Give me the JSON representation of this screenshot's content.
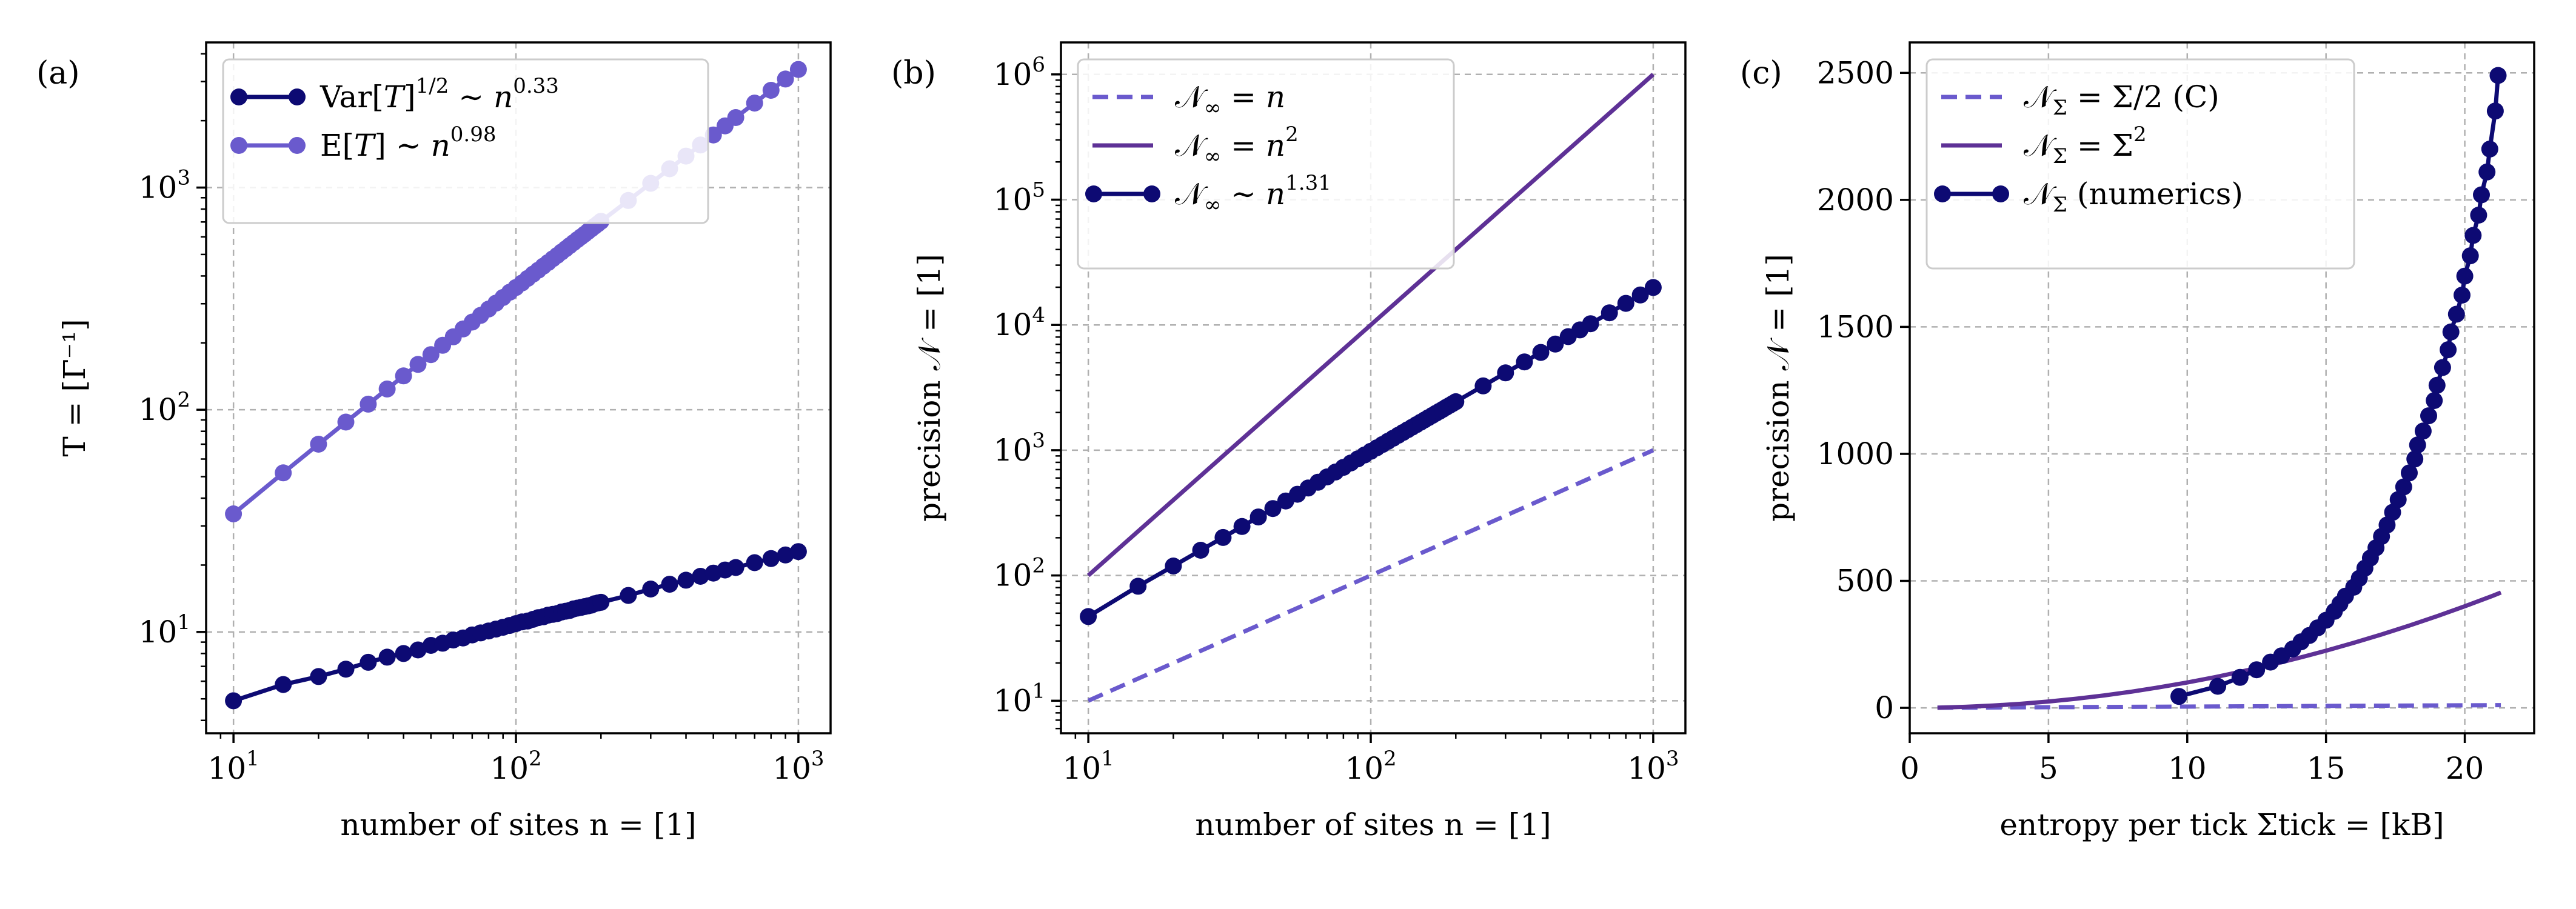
{
  "figure": {
    "colors": {
      "darknavy": "#0d0a73",
      "slate": "#6a5acd",
      "purple": "#5e3196"
    }
  },
  "chart_data": [
    {
      "panel": "(a)",
      "type": "line",
      "xlabel": "number of sites n = [1]",
      "ylabel": "T = [Γ⁻¹]",
      "xscale": "log",
      "yscale": "log",
      "xlim": [
        8,
        1300
      ],
      "ylim": [
        3.5,
        4500
      ],
      "xticks": [
        10,
        100,
        1000
      ],
      "xtick_labels": [
        [
          "10",
          "1"
        ],
        [
          "10",
          "2"
        ],
        [
          "10",
          "3"
        ]
      ],
      "yticks": [
        10,
        100,
        1000
      ],
      "ytick_labels": [
        [
          "10",
          "1"
        ],
        [
          "10",
          "2"
        ],
        [
          "10",
          "3"
        ]
      ],
      "grid": true,
      "legend_position": "top-left",
      "series": [
        {
          "name": "Var[T]^1/2 ∼ n^0.33",
          "legend_parts": [
            "Var[",
            "T",
            "]",
            "1/2",
            " ∼ ",
            "n",
            "0.33"
          ],
          "color": "#0d0a73",
          "style": "solid-markers",
          "x": [
            10,
            15,
            20,
            25,
            30,
            35,
            40,
            45,
            50,
            55,
            60,
            65,
            70,
            75,
            80,
            85,
            90,
            95,
            100,
            105,
            110,
            115,
            120,
            125,
            130,
            135,
            140,
            145,
            150,
            155,
            160,
            165,
            170,
            175,
            180,
            185,
            190,
            195,
            200,
            250,
            300,
            350,
            400,
            450,
            500,
            550,
            600,
            700,
            800,
            900,
            1000
          ],
          "y": [
            4.9,
            5.8,
            6.3,
            6.8,
            7.3,
            7.7,
            8.0,
            8.3,
            8.7,
            8.9,
            9.2,
            9.4,
            9.7,
            9.9,
            10.1,
            10.3,
            10.5,
            10.7,
            10.9,
            11.1,
            11.2,
            11.4,
            11.6,
            11.7,
            11.9,
            12.0,
            12.1,
            12.3,
            12.4,
            12.5,
            12.7,
            12.8,
            12.9,
            13.0,
            13.1,
            13.2,
            13.4,
            13.5,
            13.6,
            14.6,
            15.6,
            16.4,
            17.1,
            17.8,
            18.4,
            19.0,
            19.5,
            20.5,
            21.4,
            22.2,
            23.0
          ]
        },
        {
          "name": "E[T] ∼ n^0.98",
          "legend_parts": [
            "E[",
            "T",
            "]",
            "",
            " ∼ ",
            "n",
            "0.98"
          ],
          "color": "#6a5acd",
          "style": "solid-markers",
          "x": [
            10,
            15,
            20,
            25,
            30,
            35,
            40,
            45,
            50,
            55,
            60,
            65,
            70,
            75,
            80,
            85,
            90,
            95,
            100,
            105,
            110,
            115,
            120,
            125,
            130,
            135,
            140,
            145,
            150,
            155,
            160,
            165,
            170,
            175,
            180,
            185,
            190,
            195,
            200,
            250,
            300,
            350,
            400,
            450,
            500,
            550,
            600,
            700,
            800,
            900,
            1000
          ],
          "y": [
            34,
            52,
            70,
            88,
            106,
            124,
            142,
            160,
            177,
            195,
            213,
            231,
            248,
            266,
            284,
            302,
            320,
            338,
            355,
            372,
            390,
            408,
            425,
            443,
            460,
            478,
            495,
            513,
            530,
            548,
            565,
            583,
            600,
            617,
            635,
            652,
            670,
            687,
            705,
            875,
            1045,
            1215,
            1385,
            1555,
            1725,
            1895,
            2065,
            2400,
            2740,
            3080,
            3400
          ]
        }
      ]
    },
    {
      "panel": "(b)",
      "type": "line",
      "xlabel": "number of sites n = [1]",
      "ylabel": "precision 𝒩 = [1]",
      "xscale": "log",
      "yscale": "log",
      "xlim": [
        8,
        1300
      ],
      "ylim": [
        5.5,
        1800000
      ],
      "xticks": [
        10,
        100,
        1000
      ],
      "xtick_labels": [
        [
          "10",
          "1"
        ],
        [
          "10",
          "2"
        ],
        [
          "10",
          "3"
        ]
      ],
      "yticks": [
        10,
        100,
        1000,
        10000,
        100000,
        1000000
      ],
      "ytick_labels": [
        [
          "10",
          "1"
        ],
        [
          "10",
          "2"
        ],
        [
          "10",
          "3"
        ],
        [
          "10",
          "4"
        ],
        [
          "10",
          "5"
        ],
        [
          "10",
          "6"
        ]
      ],
      "grid": true,
      "legend_position": "top-left",
      "series": [
        {
          "name": "𝒩∞ = n",
          "legend_parts": [
            "𝒩",
            "∞",
            " = ",
            "n",
            ""
          ],
          "color": "#6a5acd",
          "style": "dashed",
          "x": [
            10,
            1000
          ],
          "y": [
            10,
            1000
          ]
        },
        {
          "name": "𝒩∞ = n^2",
          "legend_parts": [
            "𝒩",
            "∞",
            " = ",
            "n",
            "2"
          ],
          "color": "#5e3196",
          "style": "solid",
          "x": [
            10,
            1000
          ],
          "y": [
            100,
            1000000
          ]
        },
        {
          "name": "𝒩∞ ∼ n^1.31",
          "legend_parts": [
            "𝒩",
            "∞",
            " ∼ ",
            "n",
            "1.31"
          ],
          "color": "#0d0a73",
          "style": "solid-markers",
          "x": [
            10,
            15,
            20,
            25,
            30,
            35,
            40,
            45,
            50,
            55,
            60,
            65,
            70,
            75,
            80,
            85,
            90,
            95,
            100,
            105,
            110,
            115,
            120,
            125,
            130,
            135,
            140,
            145,
            150,
            155,
            160,
            165,
            170,
            175,
            180,
            185,
            190,
            195,
            200,
            250,
            300,
            350,
            400,
            450,
            500,
            550,
            600,
            700,
            800,
            900,
            1000
          ],
          "y": [
            47,
            82,
            119,
            159,
            201,
            246,
            293,
            342,
            393,
            445,
            499,
            555,
            612,
            670,
            730,
            791,
            853,
            916,
            980,
            1045,
            1111,
            1178,
            1246,
            1315,
            1385,
            1455,
            1526,
            1598,
            1671,
            1744,
            1818,
            1893,
            1969,
            2045,
            2122,
            2200,
            2278,
            2357,
            2437,
            3262,
            4141,
            5066,
            6030,
            7032,
            8066,
            9131,
            10224,
            12490,
            14865,
            17335,
            19898
          ]
        }
      ]
    },
    {
      "panel": "(c)",
      "type": "line",
      "xlabel": "entropy per tick Σtick = [kB]",
      "ylabel": "precision 𝒩 = [1]",
      "xscale": "linear",
      "yscale": "linear",
      "xlim": [
        0,
        22.5
      ],
      "ylim": [
        -100,
        2620
      ],
      "xticks": [
        0,
        5,
        10,
        15,
        20
      ],
      "xtick_labels": [
        [
          "0",
          ""
        ],
        [
          "5",
          ""
        ],
        [
          "10",
          ""
        ],
        [
          "15",
          ""
        ],
        [
          "20",
          ""
        ]
      ],
      "yticks": [
        0,
        500,
        1000,
        1500,
        2000,
        2500
      ],
      "ytick_labels": [
        [
          "0",
          ""
        ],
        [
          "500",
          ""
        ],
        [
          "1000",
          ""
        ],
        [
          "1500",
          ""
        ],
        [
          "2000",
          ""
        ],
        [
          "2500",
          ""
        ]
      ],
      "grid": true,
      "legend_position": "top-left",
      "series": [
        {
          "name": "𝒩Σ = Σ/2 (C)",
          "legend_parts": [
            "𝒩",
            "Σ",
            " = Σ/2 (C)",
            "",
            ""
          ],
          "color": "#6a5acd",
          "style": "dashed",
          "x": [
            1,
            5,
            10,
            15,
            21.3
          ],
          "y": [
            0.5,
            2.5,
            5,
            7.5,
            10.6
          ]
        },
        {
          "name": "𝒩Σ = Σ^2",
          "legend_parts": [
            "𝒩",
            "Σ",
            " = Σ",
            "",
            "2"
          ],
          "color": "#5e3196",
          "style": "solid",
          "x": [
            1,
            2,
            3,
            4,
            5,
            6,
            7,
            8,
            9,
            10,
            11,
            12,
            13,
            14,
            15,
            16,
            17,
            18,
            19,
            20,
            21,
            21.3
          ],
          "y": [
            1,
            4,
            9,
            16,
            25,
            36,
            49,
            64,
            81,
            100,
            121,
            144,
            169,
            196,
            225,
            256,
            289,
            324,
            361,
            400,
            441,
            454
          ]
        },
        {
          "name": "𝒩Σ (numerics)",
          "legend_parts": [
            "𝒩",
            "Σ",
            " (numerics)",
            "",
            ""
          ],
          "color": "#0d0a73",
          "style": "solid-markers",
          "x": [
            9.7,
            11.1,
            11.9,
            12.5,
            13.0,
            13.4,
            13.8,
            14.1,
            14.4,
            14.7,
            15.0,
            15.3,
            15.5,
            15.7,
            16.0,
            16.2,
            16.4,
            16.6,
            16.8,
            17.0,
            17.2,
            17.4,
            17.6,
            17.8,
            18.0,
            18.2,
            18.3,
            18.5,
            18.7,
            18.9,
            19.0,
            19.2,
            19.4,
            19.5,
            19.7,
            19.9,
            20.0,
            20.2,
            20.3,
            20.5,
            20.6,
            20.8,
            20.9,
            21.1,
            21.2
          ],
          "y": [
            45,
            85,
            120,
            150,
            180,
            205,
            232,
            260,
            285,
            315,
            345,
            380,
            410,
            440,
            475,
            510,
            550,
            590,
            630,
            675,
            720,
            770,
            820,
            870,
            925,
            980,
            1035,
            1090,
            1150,
            1210,
            1270,
            1340,
            1410,
            1480,
            1550,
            1625,
            1700,
            1780,
            1860,
            1940,
            2020,
            2110,
            2200,
            2350,
            2490
          ]
        }
      ]
    }
  ]
}
